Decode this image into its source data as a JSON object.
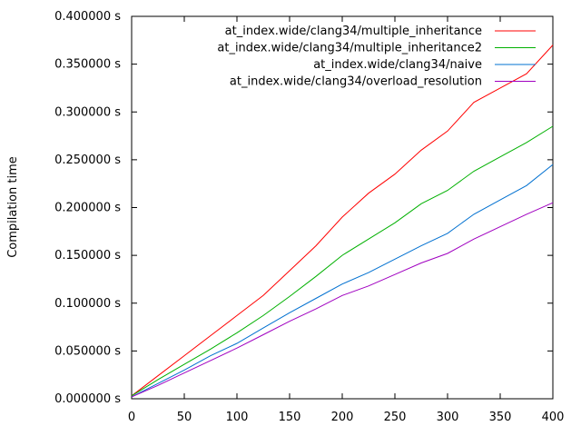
{
  "chart_data": {
    "type": "line",
    "title": "",
    "xlabel": "",
    "ylabel": "Compilation time",
    "xlim": [
      0,
      400
    ],
    "ylim": [
      0,
      0.4
    ],
    "x_ticks": [
      "0",
      "50",
      "100",
      "150",
      "200",
      "250",
      "300",
      "350",
      "400"
    ],
    "y_ticks": [
      "0.000000 s",
      "0.050000 s",
      "0.100000 s",
      "0.150000 s",
      "0.200000 s",
      "0.250000 s",
      "0.300000 s",
      "0.350000 s",
      "0.400000 s"
    ],
    "grid": false,
    "legend_position": "top-right",
    "x": [
      0,
      25,
      50,
      75,
      100,
      125,
      150,
      175,
      200,
      225,
      250,
      275,
      300,
      325,
      350,
      375,
      400
    ],
    "series": [
      {
        "name": "at_index.wide/clang34/multiple_inheritance",
        "color": "#ff0000",
        "values": [
          0.003,
          0.024,
          0.045,
          0.066,
          0.087,
          0.108,
          0.134,
          0.16,
          0.19,
          0.215,
          0.235,
          0.26,
          0.28,
          0.31,
          0.325,
          0.34,
          0.37
        ]
      },
      {
        "name": "at_index.wide/clang34/multiple_inheritance2",
        "color": "#00b000",
        "values": [
          0.003,
          0.02,
          0.036,
          0.052,
          0.069,
          0.087,
          0.107,
          0.128,
          0.15,
          0.167,
          0.184,
          0.204,
          0.218,
          0.238,
          0.253,
          0.268,
          0.285
        ]
      },
      {
        "name": "at_index.wide/clang34/naive",
        "color": "#0070d0",
        "values": [
          0.002,
          0.016,
          0.03,
          0.045,
          0.058,
          0.074,
          0.09,
          0.105,
          0.12,
          0.132,
          0.146,
          0.16,
          0.173,
          0.193,
          0.208,
          0.223,
          0.245
        ]
      },
      {
        "name": "at_index.wide/clang34/overload_resolution",
        "color": "#a000c0",
        "values": [
          0.002,
          0.014,
          0.027,
          0.04,
          0.053,
          0.067,
          0.081,
          0.094,
          0.108,
          0.118,
          0.13,
          0.142,
          0.152,
          0.167,
          0.18,
          0.193,
          0.205
        ]
      }
    ]
  }
}
